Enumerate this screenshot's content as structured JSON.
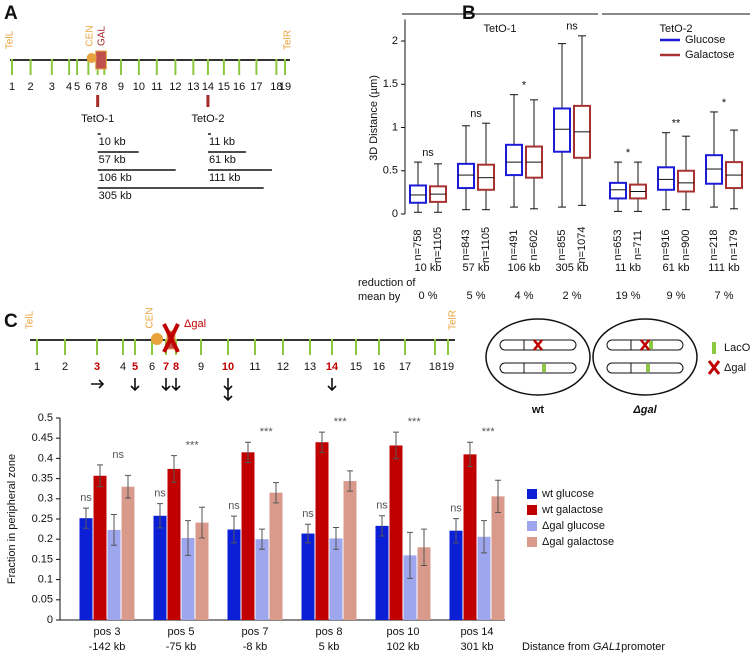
{
  "panel_a": {
    "letter": "A",
    "tel_left": "TelL",
    "cen": "CEN",
    "gal": "GAL",
    "tel_right": "TelR",
    "positions": [
      "1",
      "2",
      "3",
      "4",
      "5",
      "6",
      "7",
      "8",
      "9",
      "10",
      "11",
      "12",
      "13",
      "14",
      "15",
      "16",
      "17",
      "18",
      "19"
    ],
    "teto1": "TetO-1",
    "teto2": "TetO-2",
    "distances_teto1": [
      "10 kb",
      "57 kb",
      "106 kb",
      "305 kb"
    ],
    "distances_teto2": [
      "11 kb",
      "61 kb",
      "111 kb"
    ]
  },
  "panel_c": {
    "letter": "C",
    "tel_left": "TelL",
    "cen": "CEN",
    "tel_right": "TelR",
    "deletion": "Δgal",
    "positions": [
      "1",
      "2",
      "3",
      "4",
      "5",
      "6",
      "7",
      "8",
      "9",
      "10",
      "11",
      "12",
      "13",
      "14",
      "15",
      "16",
      "17",
      "18",
      "19"
    ],
    "highlight_color": "#c00000",
    "legend": {
      "laco": "LacO",
      "dgal": "Δgal"
    },
    "cells": {
      "wt": "wt",
      "dgal": "Δgal"
    }
  },
  "chart_data": [
    {
      "type": "box",
      "letter": "B",
      "y_label": "3D Distance (µm)",
      "groups": [
        "TetO-1",
        "TetO-2"
      ],
      "categories": [
        "10 kb",
        "57 kb",
        "106 kb",
        "305 kb",
        "11 kb",
        "61 kb",
        "111 kb"
      ],
      "significance": [
        "ns",
        "ns",
        "*",
        "ns",
        "*",
        "**",
        "*"
      ],
      "reduction_label": "reduction of mean by",
      "reductions": [
        "0 %",
        "5 %",
        "4 %",
        "2 %",
        "19 %",
        "9 %",
        "7 %"
      ],
      "ylim": [
        0,
        2.25
      ],
      "yticks": [
        0,
        0.5,
        1,
        1.5,
        2
      ],
      "legend": "upper right",
      "series": [
        {
          "name": "Glucose",
          "color": "#1c1cd8",
          "n_labels": [
            "n=758",
            "n=843",
            "n=491",
            "n=855",
            "n=653",
            "n=916",
            "n=218"
          ],
          "boxes": [
            {
              "whisker_low": 0.02,
              "q1": 0.13,
              "median": 0.22,
              "q3": 0.33,
              "whisker_high": 0.6
            },
            {
              "whisker_low": 0.05,
              "q1": 0.3,
              "median": 0.45,
              "q3": 0.58,
              "whisker_high": 1.02
            },
            {
              "whisker_low": 0.08,
              "q1": 0.45,
              "median": 0.6,
              "q3": 0.8,
              "whisker_high": 1.38
            },
            {
              "whisker_low": 0.08,
              "q1": 0.72,
              "median": 0.98,
              "q3": 1.22,
              "whisker_high": 1.97
            },
            {
              "whisker_low": 0.03,
              "q1": 0.18,
              "median": 0.28,
              "q3": 0.36,
              "whisker_high": 0.6
            },
            {
              "whisker_low": 0.05,
              "q1": 0.28,
              "median": 0.4,
              "q3": 0.54,
              "whisker_high": 0.94
            },
            {
              "whisker_low": 0.08,
              "q1": 0.35,
              "median": 0.52,
              "q3": 0.68,
              "whisker_high": 1.18
            }
          ]
        },
        {
          "name": "Galactose",
          "color": "#a83232",
          "n_labels": [
            "n=1105",
            "n=1105",
            "n=602",
            "n=1074",
            "n=711",
            "n=900",
            "n=179"
          ],
          "boxes": [
            {
              "whisker_low": 0.02,
              "q1": 0.14,
              "median": 0.23,
              "q3": 0.32,
              "whisker_high": 0.58
            },
            {
              "whisker_low": 0.05,
              "q1": 0.28,
              "median": 0.42,
              "q3": 0.57,
              "whisker_high": 1.05
            },
            {
              "whisker_low": 0.06,
              "q1": 0.42,
              "median": 0.6,
              "q3": 0.78,
              "whisker_high": 1.32
            },
            {
              "whisker_low": 0.1,
              "q1": 0.65,
              "median": 0.95,
              "q3": 1.25,
              "whisker_high": 2.06
            },
            {
              "whisker_low": 0.03,
              "q1": 0.18,
              "median": 0.26,
              "q3": 0.34,
              "whisker_high": 0.6
            },
            {
              "whisker_low": 0.05,
              "q1": 0.26,
              "median": 0.36,
              "q3": 0.5,
              "whisker_high": 0.9
            },
            {
              "whisker_low": 0.06,
              "q1": 0.3,
              "median": 0.45,
              "q3": 0.6,
              "whisker_high": 0.97
            }
          ]
        }
      ]
    },
    {
      "type": "bar",
      "y_label": "Fraction in peripheral zone",
      "x_label": [
        "Distance from ",
        "GAL1",
        "promoter"
      ],
      "categories": [
        "pos 3",
        "pos 5",
        "pos 7",
        "pos 8",
        "pos 10",
        "pos 14"
      ],
      "category_sublabels": [
        "-142 kb",
        "-75 kb",
        "-8 kb",
        "5 kb",
        "102 kb",
        "301 kb"
      ],
      "significance_left": [
        "ns",
        "ns",
        "ns",
        "ns",
        "ns",
        "ns"
      ],
      "significance_right": [
        "ns",
        "***",
        "***",
        "***",
        "***",
        "***"
      ],
      "ylim": [
        0,
        0.5
      ],
      "yticks": [
        0,
        0.05,
        0.1,
        0.15,
        0.2,
        0.25,
        0.3,
        0.35,
        0.4,
        0.45,
        0.5
      ],
      "legend": "right",
      "series": [
        {
          "name": "wt glucose",
          "color": "#0a1fd6",
          "values": [
            0.252,
            0.258,
            0.224,
            0.214,
            0.233,
            0.221
          ],
          "errors": [
            0.025,
            0.03,
            0.033,
            0.023,
            0.025,
            0.03
          ]
        },
        {
          "name": "wt galactose",
          "color": "#c00000",
          "values": [
            0.357,
            0.374,
            0.415,
            0.44,
            0.432,
            0.41
          ],
          "errors": [
            0.027,
            0.033,
            0.025,
            0.025,
            0.033,
            0.03
          ]
        },
        {
          "name": "Δgal glucose",
          "color": "#9ea6ee",
          "values": [
            0.223,
            0.203,
            0.2,
            0.202,
            0.16,
            0.206
          ],
          "errors": [
            0.038,
            0.043,
            0.025,
            0.027,
            0.057,
            0.04
          ]
        },
        {
          "name": "Δgal galactose",
          "color": "#d99a8c",
          "values": [
            0.33,
            0.241,
            0.315,
            0.344,
            0.18,
            0.306
          ],
          "errors": [
            0.028,
            0.038,
            0.025,
            0.025,
            0.045,
            0.04
          ]
        }
      ]
    }
  ]
}
